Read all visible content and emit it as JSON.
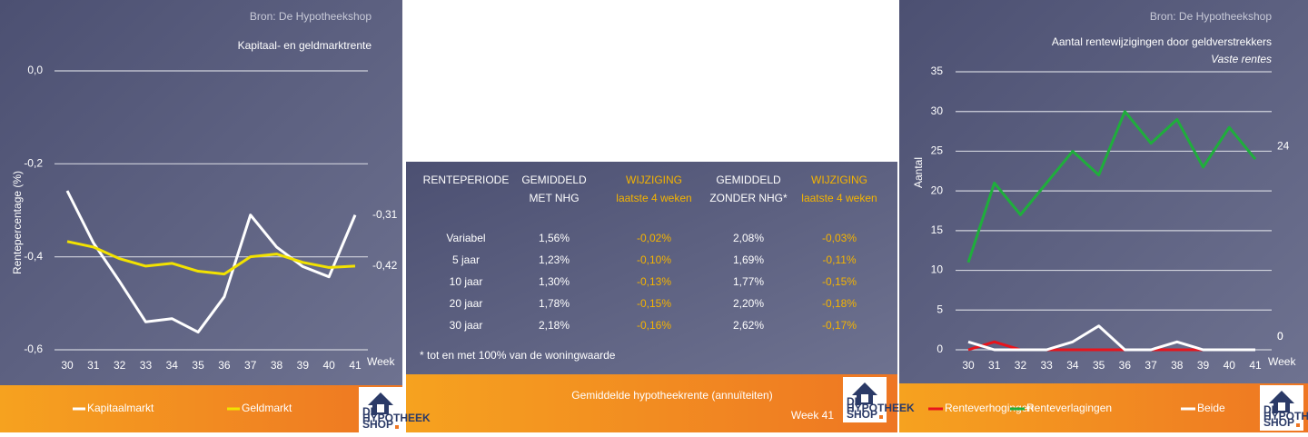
{
  "chart_data": [
    {
      "type": "line",
      "source": "Bron: De Hypotheekshop",
      "title": "Kapitaal- en geldmarktrente",
      "y_label": "Rentepercentage (%)",
      "x_label": "Week",
      "categories": [
        "30",
        "31",
        "32",
        "33",
        "34",
        "35",
        "36",
        "37",
        "38",
        "39",
        "40",
        "41"
      ],
      "ylim": [
        -0.6,
        0
      ],
      "yticks": [
        {
          "value": 0,
          "label": "0,0"
        },
        {
          "value": -0.2,
          "label": "-0,2"
        },
        {
          "value": -0.4,
          "label": "-0,4"
        },
        {
          "value": -0.6,
          "label": "-0,6"
        }
      ],
      "grid": true,
      "series": [
        {
          "name": "Kapitaalmarkt",
          "color": "#ffffff",
          "values": [
            -0.258,
            -0.37,
            -0.453,
            -0.54,
            -0.533,
            -0.562,
            -0.486,
            -0.31,
            -0.379,
            -0.421,
            -0.443,
            -0.31
          ],
          "value_labels": [
            null,
            null,
            null,
            null,
            null,
            null,
            null,
            null,
            null,
            null,
            null,
            "-0,31"
          ]
        },
        {
          "name": "Geldmarkt",
          "color": "#f2e200",
          "values": [
            -0.367,
            -0.379,
            -0.404,
            -0.42,
            -0.414,
            -0.431,
            -0.437,
            -0.4,
            -0.394,
            -0.412,
            -0.423,
            -0.42
          ],
          "value_labels": [
            null,
            null,
            null,
            null,
            null,
            null,
            null,
            null,
            null,
            null,
            null,
            "-0,42"
          ]
        }
      ]
    },
    {
      "type": "line",
      "source": "Bron: De Hypotheekshop",
      "title": "Aantal rentewijzigingen door geldverstrekkers",
      "subtitle": "Vaste rentes",
      "y_label": "Aantal",
      "x_label": "Week",
      "categories": [
        "30",
        "31",
        "32",
        "33",
        "34",
        "35",
        "36",
        "37",
        "38",
        "39",
        "40",
        "41"
      ],
      "ylim": [
        0,
        35
      ],
      "yticks": [
        0,
        5,
        10,
        15,
        20,
        25,
        30,
        35
      ],
      "grid": true,
      "series": [
        {
          "name": "Renteverhogingen",
          "color": "#e8141c",
          "values": [
            0,
            1,
            0,
            0,
            0,
            0,
            0,
            0,
            0,
            0,
            0,
            0
          ],
          "value_labels": [
            null,
            null,
            null,
            null,
            null,
            null,
            null,
            null,
            null,
            null,
            null,
            "0"
          ]
        },
        {
          "name": "Renteverlagingen",
          "color": "#1fae3c",
          "values": [
            11,
            21,
            17,
            21,
            25,
            22,
            30,
            26,
            29,
            23,
            28,
            24
          ],
          "value_labels": [
            null,
            null,
            null,
            null,
            null,
            null,
            null,
            null,
            null,
            null,
            null,
            "24"
          ]
        },
        {
          "name": "Beide",
          "color": "#ffffff",
          "values": [
            1,
            0,
            0,
            0,
            1,
            3,
            0,
            0,
            1,
            0,
            0,
            0
          ],
          "value_labels": [
            null,
            null,
            null,
            null,
            null,
            null,
            null,
            null,
            null,
            null,
            null,
            "0"
          ]
        }
      ]
    }
  ],
  "table": {
    "header": [
      [
        "RENTEPERIODE"
      ],
      [
        "GEMIDDELD",
        "MET NHG"
      ],
      [
        "WIJZIGING",
        "laatste 4 weken"
      ],
      [
        "GEMIDDELD",
        "ZONDER NHG*"
      ],
      [
        "WIJZIGING",
        "laatste 4 weken"
      ]
    ],
    "rows": [
      [
        "Variabel",
        "1,56%",
        "-0,02%",
        "2,08%",
        "-0,03%"
      ],
      [
        "5 jaar",
        "1,23%",
        "-0,10%",
        "1,69%",
        "-0,11%"
      ],
      [
        "10 jaar",
        "1,30%",
        "-0,13%",
        "1,77%",
        "-0,15%"
      ],
      [
        "20 jaar",
        "1,78%",
        "-0,15%",
        "2,20%",
        "-0,18%"
      ],
      [
        "30 jaar",
        "2,18%",
        "-0,16%",
        "2,62%",
        "-0,17%"
      ]
    ],
    "footnote": "* tot en met 100% van de woningwaarde",
    "title": "Gemiddelde hypotheekrente (annuïteiten)",
    "week": "Week 41"
  },
  "logo": [
    "DE",
    "HYPOTHEEK",
    "SHOP"
  ]
}
